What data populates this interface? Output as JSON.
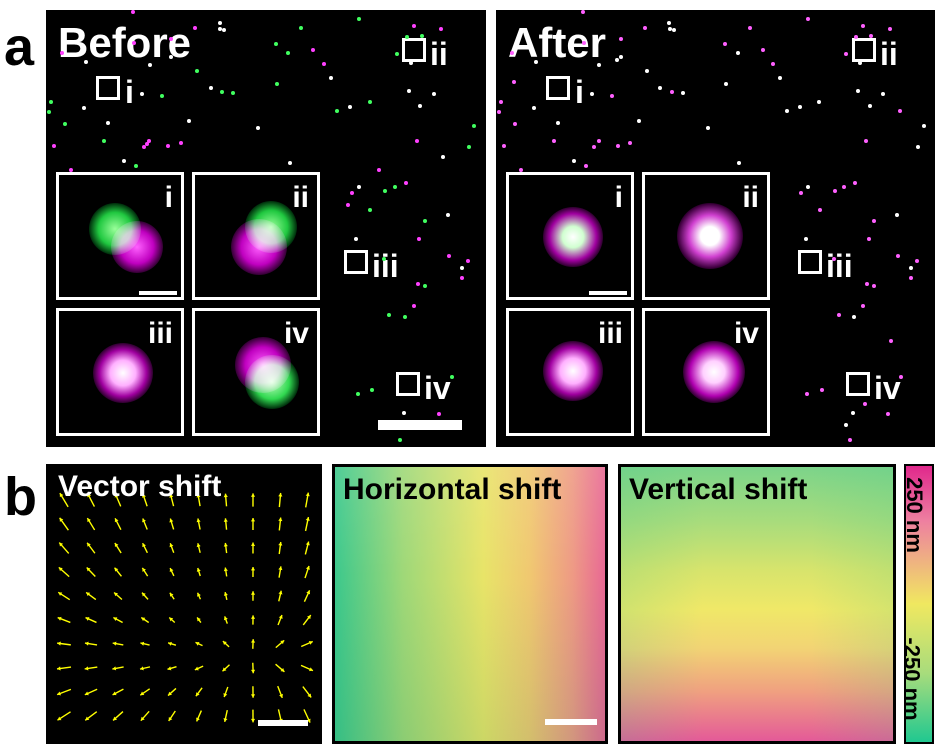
{
  "panel_a": {
    "label": "a",
    "before": {
      "title": "Before",
      "rois": [
        "i",
        "ii",
        "iii",
        "iv"
      ],
      "insets": [
        "i",
        "ii",
        "iii",
        "iv"
      ]
    },
    "after": {
      "title": "After",
      "rois": [
        "i",
        "ii",
        "iii",
        "iv"
      ],
      "insets": [
        "i",
        "ii",
        "iii",
        "iv"
      ]
    },
    "colors": {
      "magenta": "#ff00ff",
      "green": "#00ff40",
      "overlap": "#ffffff"
    }
  },
  "panel_b": {
    "label": "b",
    "vector_shift": {
      "title": "Vector shift",
      "arrow_color": "#ffff00"
    },
    "horizontal_shift": {
      "title": "Horizontal shift"
    },
    "vertical_shift": {
      "title": "Vertical shift"
    },
    "colorbar": {
      "top_label": "250 nm",
      "bottom_label": "-250 nm",
      "colors": [
        "#e0288c",
        "#f0e860",
        "#20c890"
      ]
    }
  }
}
